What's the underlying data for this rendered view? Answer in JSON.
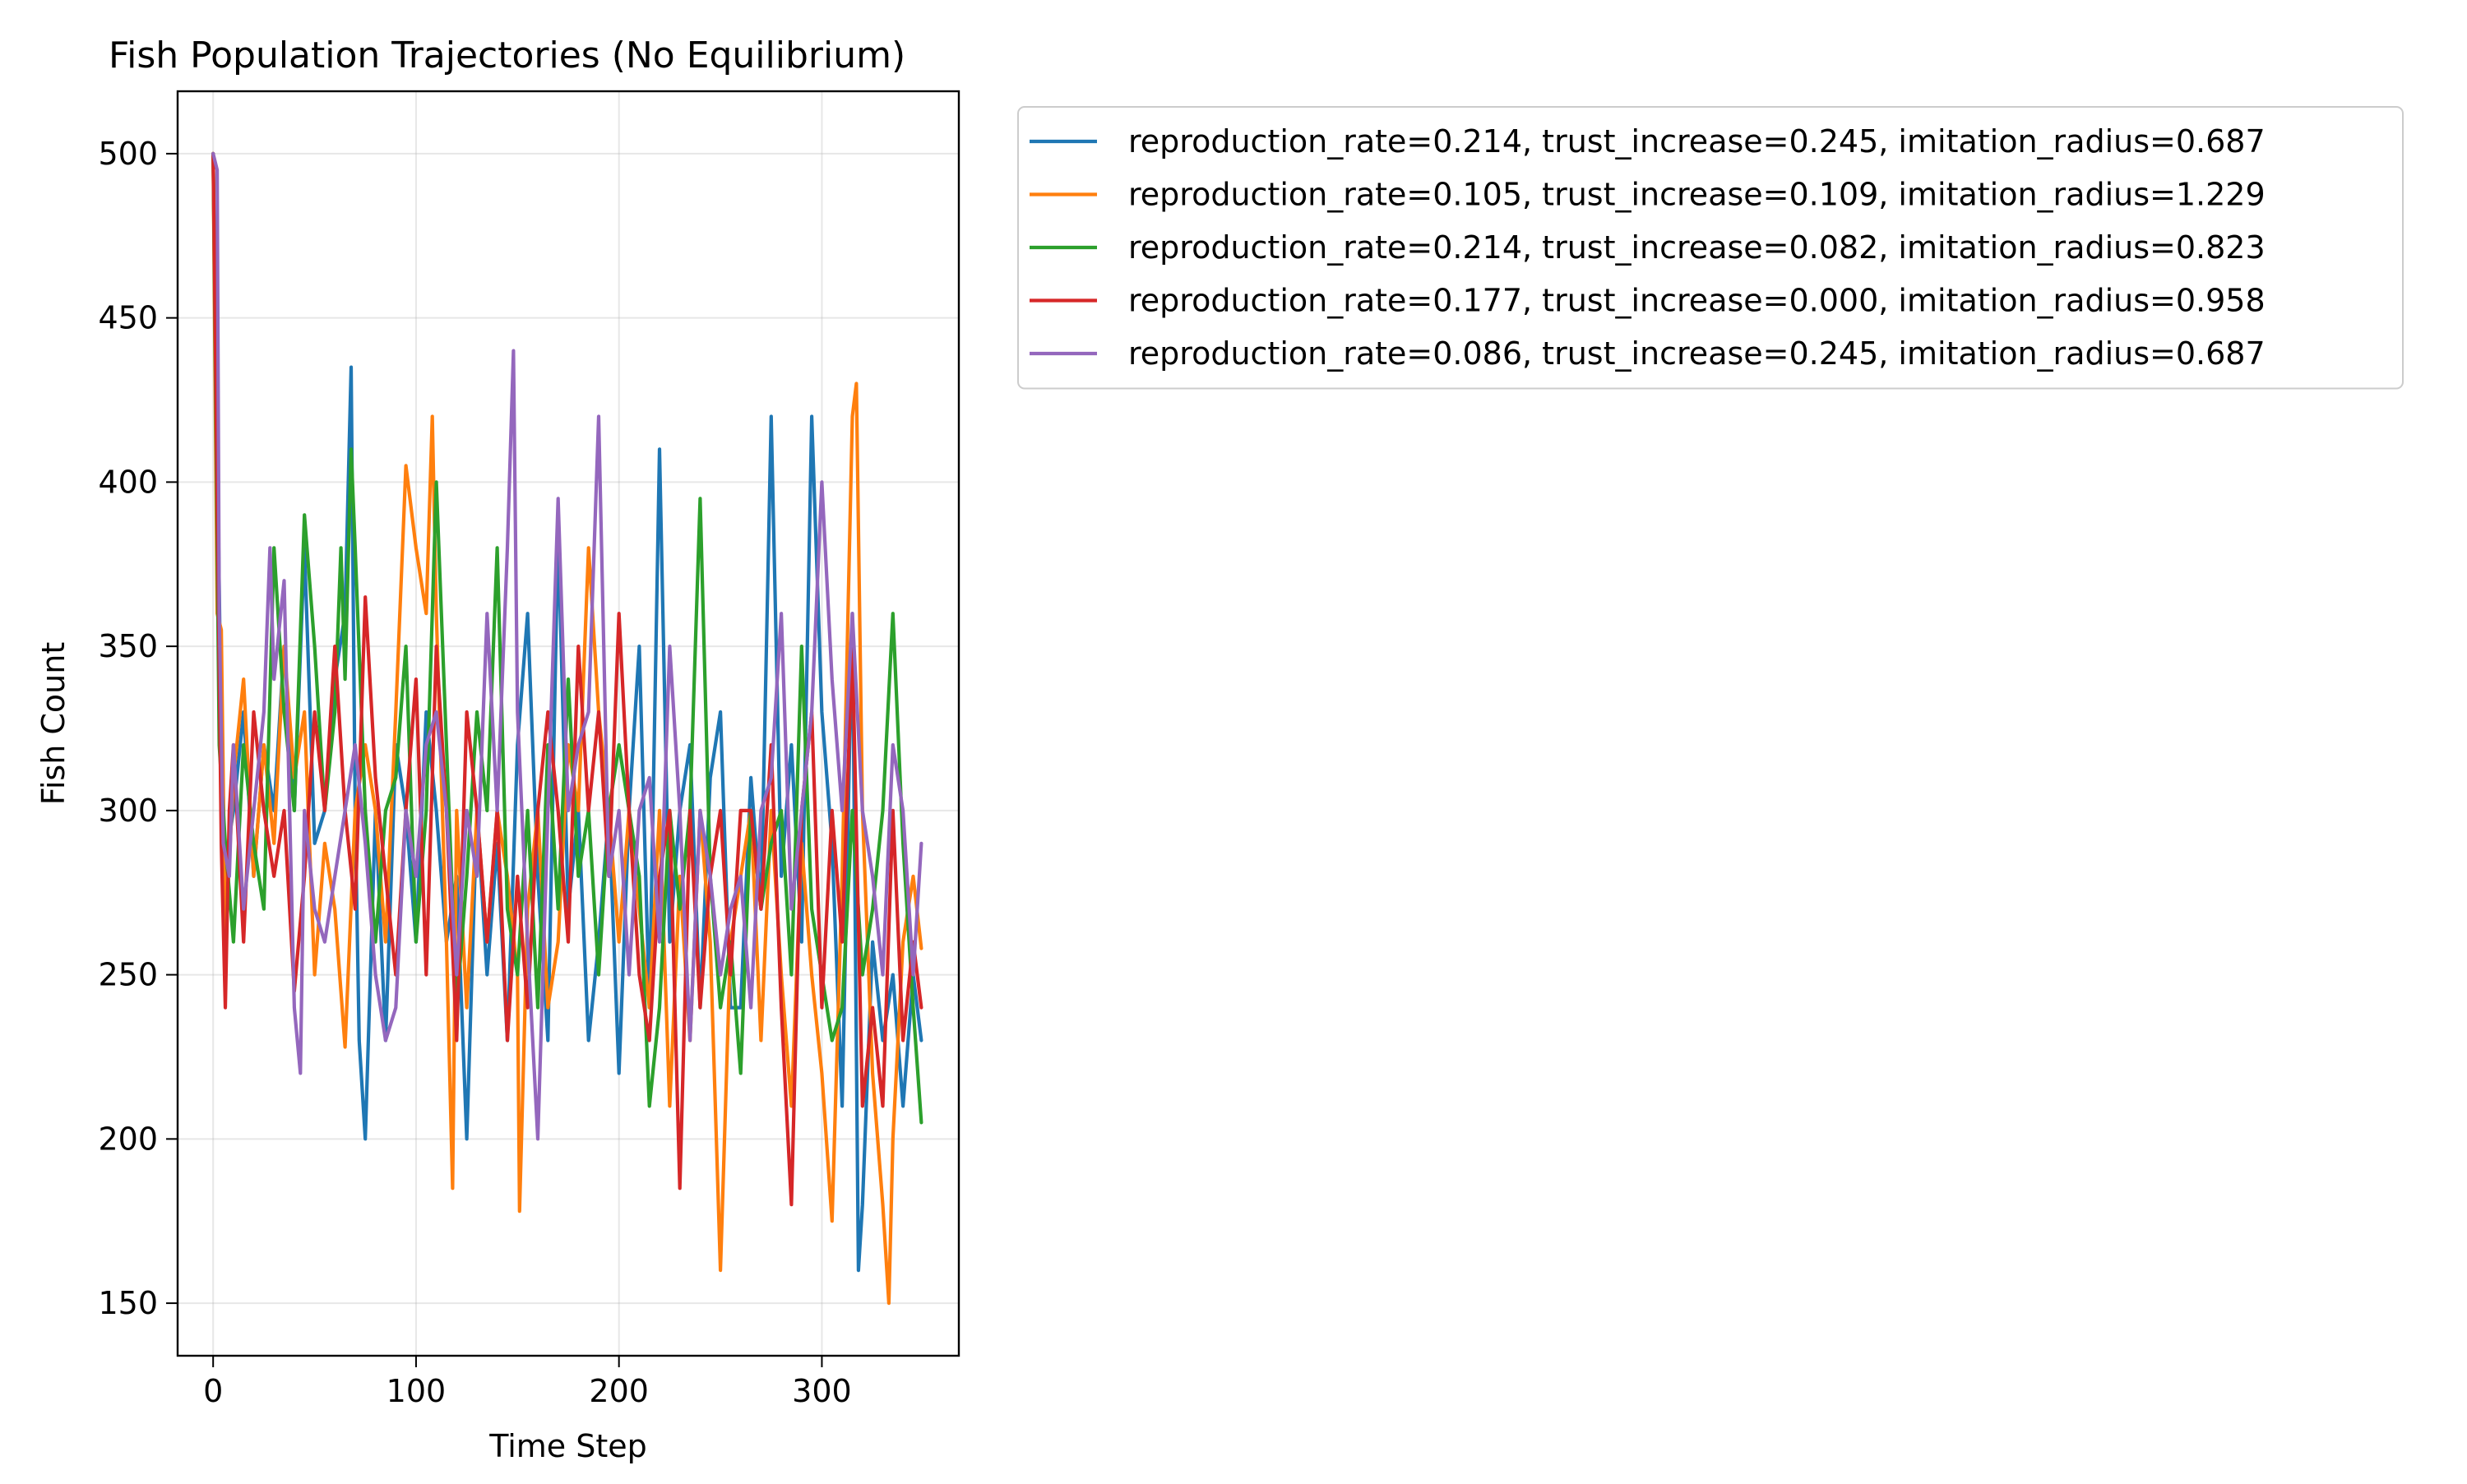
{
  "chart_data": {
    "type": "line",
    "title": "Fish Population Trajectories (No Equilibrium)",
    "xlabel": "Time Step",
    "ylabel": "Fish Count",
    "xlim": [
      -17.5,
      367.5
    ],
    "ylim": [
      134,
      519
    ],
    "xticks": [
      0,
      100,
      200,
      300
    ],
    "yticks": [
      150,
      200,
      250,
      300,
      350,
      400,
      450,
      500
    ],
    "grid": true,
    "legend_position": "outside-top-right",
    "series": [
      {
        "name": "reproduction_rate=0.214, trust_increase=0.245, imitation_radius=0.687",
        "color": "#1f77b4",
        "x": [
          0,
          5,
          10,
          15,
          20,
          25,
          30,
          35,
          40,
          45,
          50,
          55,
          60,
          65,
          68,
          70,
          72,
          75,
          80,
          85,
          90,
          95,
          100,
          105,
          110,
          115,
          120,
          125,
          130,
          135,
          140,
          145,
          150,
          155,
          160,
          165,
          170,
          175,
          180,
          185,
          190,
          195,
          200,
          205,
          210,
          215,
          220,
          225,
          230,
          235,
          240,
          245,
          250,
          255,
          260,
          265,
          270,
          275,
          280,
          285,
          290,
          295,
          300,
          305,
          310,
          315,
          318,
          320,
          325,
          330,
          335,
          340,
          345,
          349
        ],
        "y": [
          500,
          280,
          300,
          330,
          280,
          320,
          300,
          350,
          300,
          380,
          290,
          300,
          340,
          360,
          435,
          300,
          230,
          200,
          300,
          230,
          320,
          300,
          260,
          330,
          300,
          260,
          280,
          200,
          300,
          250,
          290,
          230,
          320,
          360,
          280,
          230,
          385,
          270,
          300,
          230,
          260,
          300,
          220,
          300,
          350,
          240,
          410,
          260,
          300,
          320,
          240,
          310,
          330,
          240,
          240,
          310,
          270,
          420,
          280,
          320,
          260,
          420,
          330,
          290,
          210,
          360,
          160,
          180,
          260,
          230,
          250,
          210,
          250,
          230
        ]
      },
      {
        "name": "reproduction_rate=0.105, trust_increase=0.109, imitation_radius=1.229",
        "color": "#ff7f0e",
        "x": [
          0,
          2,
          4,
          6,
          10,
          15,
          20,
          25,
          30,
          35,
          40,
          45,
          50,
          55,
          60,
          65,
          70,
          75,
          80,
          85,
          90,
          95,
          100,
          105,
          108,
          110,
          115,
          118,
          120,
          125,
          130,
          135,
          140,
          145,
          150,
          151,
          155,
          160,
          165,
          170,
          175,
          180,
          185,
          190,
          195,
          200,
          205,
          210,
          215,
          220,
          225,
          230,
          235,
          240,
          245,
          250,
          255,
          260,
          265,
          270,
          275,
          280,
          285,
          290,
          295,
          300,
          305,
          310,
          315,
          317,
          320,
          325,
          330,
          333,
          335,
          340,
          345,
          349
        ],
        "y": [
          500,
          360,
          355,
          260,
          310,
          340,
          280,
          320,
          290,
          350,
          310,
          330,
          250,
          290,
          270,
          228,
          300,
          320,
          300,
          260,
          330,
          405,
          380,
          360,
          420,
          360,
          260,
          185,
          300,
          240,
          300,
          260,
          300,
          280,
          250,
          178,
          270,
          300,
          240,
          260,
          320,
          300,
          380,
          330,
          300,
          260,
          300,
          270,
          240,
          300,
          210,
          280,
          230,
          300,
          260,
          160,
          260,
          280,
          300,
          230,
          300,
          250,
          210,
          290,
          250,
          220,
          175,
          280,
          420,
          430,
          300,
          220,
          180,
          150,
          200,
          260,
          280,
          258
        ]
      },
      {
        "name": "reproduction_rate=0.214, trust_increase=0.082, imitation_radius=0.823",
        "color": "#2ca02c",
        "x": [
          0,
          3,
          6,
          10,
          15,
          20,
          25,
          30,
          35,
          40,
          45,
          50,
          55,
          60,
          63,
          65,
          68,
          70,
          75,
          80,
          85,
          90,
          95,
          100,
          105,
          110,
          115,
          120,
          125,
          130,
          135,
          140,
          145,
          150,
          155,
          160,
          165,
          170,
          175,
          180,
          185,
          190,
          195,
          200,
          205,
          210,
          215,
          220,
          225,
          230,
          235,
          240,
          245,
          250,
          255,
          260,
          265,
          270,
          275,
          280,
          285,
          290,
          295,
          300,
          305,
          310,
          315,
          320,
          325,
          330,
          335,
          340,
          345,
          349
        ],
        "y": [
          500,
          320,
          290,
          260,
          320,
          290,
          270,
          380,
          330,
          300,
          390,
          350,
          300,
          330,
          380,
          340,
          410,
          380,
          300,
          260,
          300,
          310,
          350,
          260,
          300,
          400,
          320,
          240,
          280,
          330,
          300,
          380,
          270,
          250,
          300,
          240,
          320,
          270,
          340,
          280,
          300,
          250,
          300,
          320,
          300,
          280,
          210,
          240,
          300,
          270,
          300,
          395,
          280,
          240,
          260,
          220,
          300,
          270,
          290,
          300,
          250,
          350,
          270,
          250,
          230,
          240,
          300,
          250,
          270,
          300,
          360,
          290,
          240,
          205
        ]
      },
      {
        "name": "reproduction_rate=0.177, trust_increase=0.000, imitation_radius=0.958",
        "color": "#d62728",
        "x": [
          0,
          4,
          6,
          8,
          10,
          15,
          20,
          25,
          30,
          35,
          40,
          45,
          50,
          55,
          60,
          65,
          70,
          75,
          80,
          85,
          90,
          95,
          100,
          105,
          110,
          115,
          120,
          125,
          130,
          135,
          140,
          145,
          150,
          155,
          160,
          165,
          170,
          175,
          180,
          185,
          190,
          195,
          200,
          205,
          210,
          215,
          220,
          225,
          230,
          235,
          240,
          245,
          250,
          255,
          260,
          265,
          270,
          275,
          280,
          285,
          290,
          295,
          300,
          305,
          310,
          315,
          320,
          325,
          330,
          335,
          340,
          345,
          349
        ],
        "y": [
          500,
          290,
          240,
          300,
          320,
          260,
          330,
          300,
          280,
          300,
          245,
          280,
          330,
          300,
          350,
          300,
          270,
          365,
          310,
          280,
          250,
          300,
          340,
          250,
          350,
          300,
          230,
          330,
          300,
          260,
          300,
          230,
          280,
          240,
          300,
          330,
          300,
          260,
          350,
          300,
          330,
          280,
          360,
          300,
          250,
          230,
          280,
          300,
          185,
          300,
          240,
          280,
          300,
          250,
          300,
          300,
          270,
          320,
          240,
          180,
          300,
          330,
          240,
          300,
          260,
          350,
          210,
          240,
          210,
          300,
          230,
          260,
          240
        ]
      },
      {
        "name": "reproduction_rate=0.086, trust_increase=0.245, imitation_radius=0.687",
        "color": "#9467bd",
        "x": [
          0,
          2,
          3,
          5,
          8,
          10,
          15,
          20,
          25,
          28,
          30,
          35,
          40,
          43,
          45,
          50,
          55,
          60,
          65,
          70,
          75,
          80,
          85,
          90,
          95,
          100,
          105,
          110,
          115,
          120,
          125,
          130,
          135,
          140,
          145,
          148,
          150,
          155,
          160,
          165,
          170,
          175,
          180,
          185,
          190,
          195,
          200,
          205,
          210,
          215,
          220,
          225,
          230,
          235,
          240,
          245,
          250,
          255,
          260,
          265,
          270,
          275,
          280,
          285,
          290,
          295,
          300,
          305,
          310,
          315,
          320,
          325,
          330,
          335,
          340,
          345,
          349
        ],
        "y": [
          500,
          495,
          360,
          290,
          280,
          320,
          270,
          300,
          330,
          380,
          340,
          370,
          240,
          220,
          300,
          270,
          260,
          280,
          300,
          320,
          290,
          250,
          230,
          240,
          300,
          280,
          320,
          330,
          300,
          250,
          300,
          280,
          360,
          300,
          380,
          440,
          330,
          260,
          200,
          300,
          395,
          300,
          320,
          330,
          420,
          280,
          300,
          250,
          300,
          310,
          260,
          350,
          300,
          230,
          300,
          280,
          250,
          270,
          280,
          240,
          300,
          310,
          360,
          270,
          300,
          330,
          400,
          340,
          300,
          360,
          300,
          280,
          250,
          320,
          300,
          250,
          290
        ]
      }
    ]
  }
}
